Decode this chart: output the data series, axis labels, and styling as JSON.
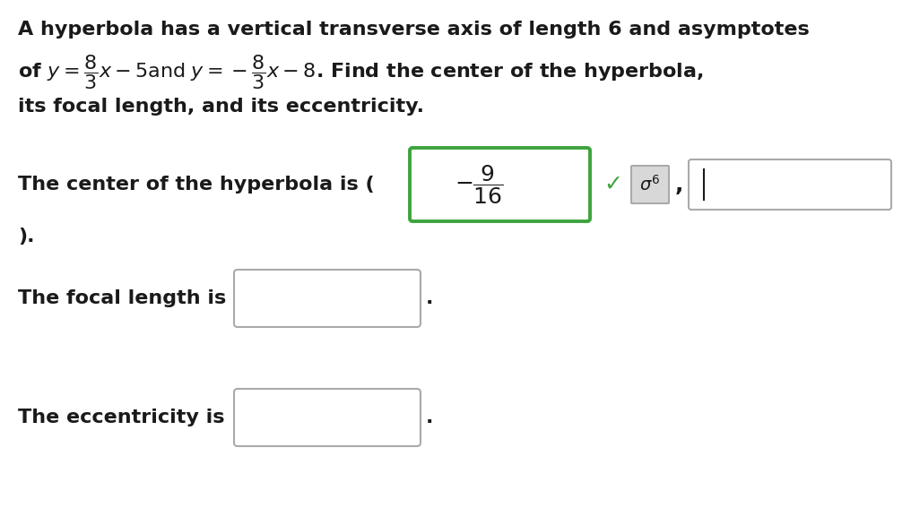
{
  "background_color": "#ffffff",
  "text_color": "#1a1a1a",
  "green_border": "#3da33d",
  "gray_border": "#aaaaaa",
  "check_color": "#3da33d",
  "font_size_main": 16,
  "line1": "A hyperbola has a vertical transverse axis of length 6 and asymptotes",
  "line3": "its focal length, and its eccentricity.",
  "center_label": "The center of the hyperbola is (",
  "closing": ").",
  "focal_label": "The focal length is",
  "ecc_label": "The eccentricity is"
}
